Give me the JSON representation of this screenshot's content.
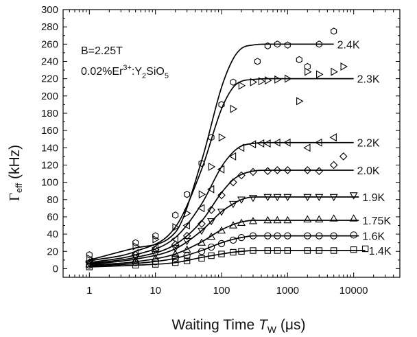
{
  "chart_data": {
    "type": "scatter",
    "x_scale": "log",
    "xlim": [
      0.4,
      50000
    ],
    "ylim": [
      -10,
      300
    ],
    "x_ticks": [
      1,
      10,
      100,
      1000,
      10000
    ],
    "x_tick_labels": [
      "1",
      "10",
      "100",
      "1000",
      "10000"
    ],
    "y_ticks": [
      0,
      20,
      40,
      60,
      80,
      100,
      120,
      140,
      160,
      180,
      200,
      220,
      240,
      260,
      280,
      300
    ],
    "y_tick_labels": [
      "0",
      "20",
      "40",
      "60",
      "80",
      "100",
      "120",
      "140",
      "160",
      "180",
      "200",
      "220",
      "240",
      "260",
      "280",
      "300"
    ],
    "xlabel": {
      "prefix": "Waiting Time ",
      "var": "T",
      "sub": "W",
      "unit": " (μs)"
    },
    "ylabel": {
      "symbol": "Γ",
      "sub": "eff",
      "unit": " (kHz)"
    },
    "annotations": {
      "field": "B=2.25T",
      "sample": {
        "a": "0.02%Er",
        "sup": "3+",
        "b": ":Y",
        "sub1": "2",
        "c": "SiO",
        "sub2": "5"
      }
    },
    "grid": false,
    "legend": "none",
    "series": [
      {
        "name": "2.4K",
        "marker": "hexagon",
        "x": [
          1,
          5,
          10,
          20,
          30,
          50,
          70,
          100,
          150,
          350,
          500,
          700,
          1000,
          1500,
          2000,
          3000,
          5000
        ],
        "y": [
          16,
          30,
          38,
          62,
          86,
          122,
          152,
          190,
          216,
          240,
          258,
          260,
          259,
          242,
          234,
          260,
          275
        ],
        "fit_x": [
          1,
          5,
          20,
          50,
          100,
          150,
          200,
          300,
          500,
          1000,
          2000,
          5000
        ],
        "fit_y": [
          10,
          24,
          42,
          125,
          210,
          243,
          255,
          259,
          260,
          260,
          260,
          260
        ]
      },
      {
        "name": "2.3K",
        "marker": "triangle-right",
        "x": [
          1,
          5,
          10,
          20,
          30,
          50,
          70,
          100,
          150,
          200,
          300,
          400,
          500,
          700,
          1000,
          1500,
          2000,
          3000,
          5000,
          7000
        ],
        "y": [
          12,
          26,
          34,
          48,
          64,
          86,
          118,
          152,
          185,
          212,
          216,
          217,
          218,
          219,
          220,
          194,
          228,
          225,
          228,
          234
        ],
        "fit_x": [
          1,
          5,
          20,
          50,
          100,
          150,
          200,
          300,
          500,
          1000,
          5000,
          10000
        ],
        "fit_y": [
          9,
          20,
          48,
          115,
          185,
          210,
          217,
          219,
          220,
          220,
          220,
          220
        ]
      },
      {
        "name": "2.2K",
        "marker": "triangle-left",
        "x": [
          1,
          5,
          10,
          20,
          30,
          50,
          70,
          100,
          150,
          200,
          300,
          400,
          500,
          700,
          1000,
          2000,
          3000,
          5000
        ],
        "y": [
          8,
          18,
          24,
          34,
          50,
          70,
          92,
          115,
          130,
          140,
          144,
          145,
          145,
          146,
          146,
          140,
          146,
          152
        ],
        "fit_x": [
          1,
          5,
          20,
          50,
          100,
          150,
          200,
          300,
          500,
          1000,
          5000,
          10000
        ],
        "fit_y": [
          7,
          16,
          36,
          75,
          118,
          135,
          142,
          145,
          146,
          146,
          146,
          146
        ]
      },
      {
        "name": "2.0K",
        "marker": "diamond",
        "x": [
          1,
          5,
          10,
          20,
          30,
          50,
          70,
          100,
          150,
          200,
          300,
          500,
          700,
          1000,
          2000,
          3000,
          5000,
          7000
        ],
        "y": [
          7,
          16,
          22,
          28,
          38,
          52,
          68,
          85,
          100,
          108,
          112,
          113,
          114,
          114,
          114,
          113,
          120,
          130
        ],
        "fit_x": [
          1,
          5,
          20,
          50,
          100,
          150,
          200,
          300,
          500,
          1000,
          5000,
          10000
        ],
        "fit_y": [
          6,
          13,
          28,
          55,
          88,
          103,
          109,
          113,
          114,
          114,
          114,
          114
        ]
      },
      {
        "name": "1.9K",
        "marker": "triangle-down",
        "x": [
          1,
          5,
          10,
          20,
          30,
          50,
          70,
          100,
          150,
          200,
          300,
          500,
          700,
          1000,
          2000,
          3000,
          5000,
          10000
        ],
        "y": [
          6,
          13,
          17,
          24,
          32,
          44,
          55,
          66,
          75,
          80,
          82,
          83,
          83,
          83,
          83,
          83,
          83,
          85
        ],
        "fit_x": [
          1,
          5,
          20,
          50,
          100,
          150,
          200,
          300,
          500,
          1000,
          5000,
          12000
        ],
        "fit_y": [
          5,
          11,
          23,
          44,
          66,
          75,
          80,
          83,
          83,
          83,
          83,
          83
        ]
      },
      {
        "name": "1.75K",
        "marker": "triangle-up",
        "x": [
          1,
          5,
          10,
          20,
          30,
          50,
          70,
          100,
          150,
          200,
          300,
          500,
          700,
          1000,
          2000,
          3000,
          5000,
          10000
        ],
        "y": [
          5,
          9,
          12,
          17,
          22,
          30,
          37,
          44,
          50,
          53,
          55,
          56,
          56,
          56,
          57,
          57,
          58,
          58
        ],
        "fit_x": [
          1,
          5,
          20,
          50,
          100,
          150,
          200,
          300,
          500,
          1000,
          5000,
          12000
        ],
        "fit_y": [
          4,
          8,
          17,
          31,
          45,
          51,
          54,
          56,
          56,
          56,
          56,
          56
        ]
      },
      {
        "name": "1.6K",
        "marker": "circle",
        "x": [
          1,
          5,
          10,
          20,
          30,
          50,
          70,
          100,
          150,
          200,
          300,
          500,
          700,
          1000,
          2000,
          3000,
          5000,
          10000
        ],
        "y": [
          4,
          7,
          8,
          12,
          15,
          20,
          25,
          29,
          33,
          36,
          38,
          38,
          38,
          38,
          38,
          38,
          38,
          39
        ],
        "fit_x": [
          1,
          5,
          20,
          50,
          100,
          150,
          200,
          300,
          500,
          1000,
          5000,
          12000
        ],
        "fit_y": [
          3,
          6,
          12,
          21,
          30,
          34,
          36,
          38,
          38,
          38,
          38,
          38
        ]
      },
      {
        "name": "1.4K",
        "marker": "square",
        "x": [
          1,
          5,
          10,
          20,
          30,
          50,
          70,
          100,
          150,
          200,
          300,
          500,
          700,
          1000,
          2000,
          3000,
          5000,
          10000,
          15000
        ],
        "y": [
          2,
          4,
          5,
          7,
          9,
          12,
          15,
          17,
          19,
          20,
          21,
          21,
          21,
          21,
          21,
          21,
          21,
          22,
          23
        ],
        "fit_x": [
          1,
          5,
          20,
          50,
          100,
          150,
          200,
          300,
          500,
          1000,
          5000,
          15000
        ],
        "fit_y": [
          2,
          4,
          7,
          13,
          17,
          19,
          20,
          21,
          21,
          21,
          21,
          21
        ]
      }
    ]
  }
}
